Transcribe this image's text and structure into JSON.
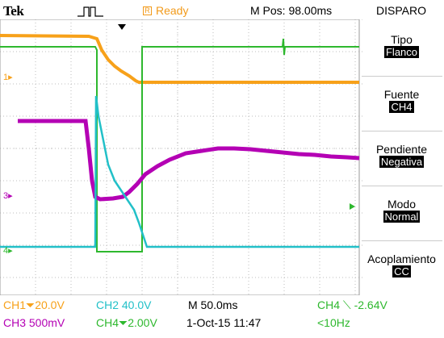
{
  "header": {
    "brand": "Tek",
    "status": "Ready",
    "status_box_glyph": "R",
    "mpos": "M Pos: 98.00ms",
    "menu_title": "DISPARO"
  },
  "colors": {
    "ch1": "#f7a11a",
    "ch2": "#22c0c8",
    "ch3": "#b400b4",
    "ch4": "#2eb82e",
    "grid": "#b8b8b8",
    "menu_value_bg": "#000000"
  },
  "menu": [
    {
      "title": "Tipo",
      "value": "Flanco"
    },
    {
      "title": "Fuente",
      "value": "CH4"
    },
    {
      "title": "Pendiente",
      "value": "Negativa"
    },
    {
      "title": "Modo",
      "value": "Normal"
    },
    {
      "title": "Acoplamiento",
      "value": "CC"
    }
  ],
  "markers": {
    "ch1": "1",
    "ch3": "3",
    "ch2_ch4": "4",
    "arrow": "➔"
  },
  "footer": {
    "ch1_scale": "CH1⏷20.0V",
    "ch2_scale": "CH2  40.0V",
    "time_scale": "M 50.0ms",
    "trigger_info": "CH4 ⟍ -2.64V",
    "ch3_scale": "CH3  500mV",
    "ch4_scale": "CH4⏷2.00V",
    "datetime": "1-Oct-15 11:47",
    "trigger_freq": "<10Hz"
  }
}
